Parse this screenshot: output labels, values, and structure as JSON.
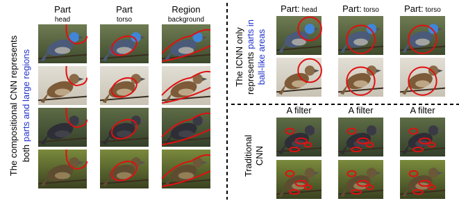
{
  "left_panel": {
    "label": {
      "line1": "The compositional CNN represents",
      "line2_prefix": "both",
      "line2_highlight": "parts and large regions"
    },
    "columns": [
      {
        "title": "Part",
        "subtitle": "head"
      },
      {
        "title": "Part",
        "subtitle": "torso"
      },
      {
        "title": "Region",
        "subtitle": "background"
      }
    ]
  },
  "icnn_panel": {
    "label": {
      "line1": "The ICNN only",
      "line2_prefix": "represents",
      "line2_highlight": "parts in",
      "line3_highlight": "ball-like areas"
    },
    "columns": [
      {
        "title": "Part:",
        "subtitle": "head"
      },
      {
        "title": "Part:",
        "subtitle": "torso"
      },
      {
        "title": "Part:",
        "subtitle": "torso"
      }
    ]
  },
  "traditional_panel": {
    "label": {
      "line1": "Traditional",
      "line2": "CNN"
    },
    "columns": [
      "A filter",
      "A filter",
      "A filter"
    ]
  }
}
